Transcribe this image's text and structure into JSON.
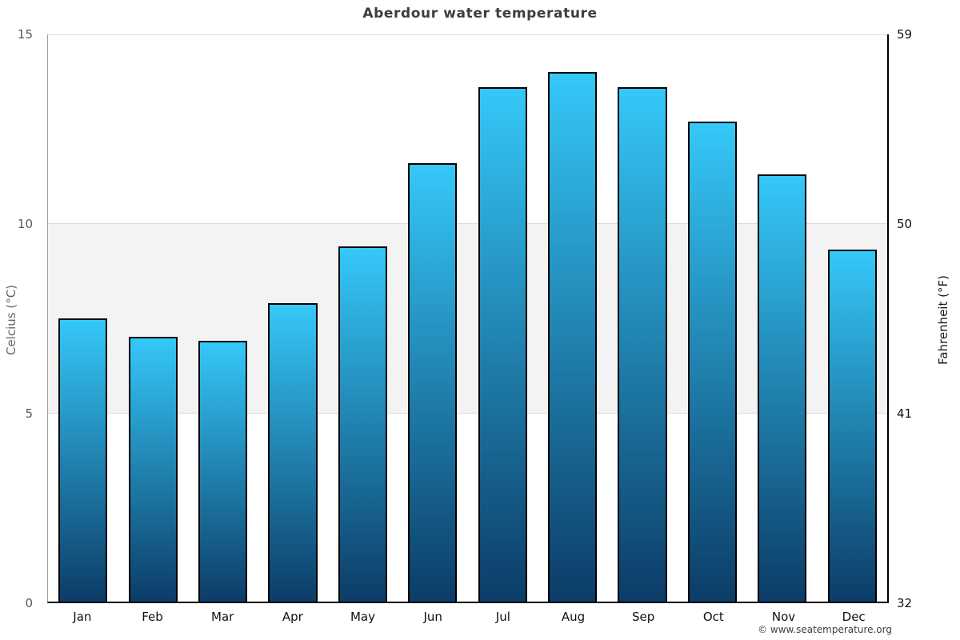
{
  "footer": {
    "copyright": "© www.seatemperature.org"
  },
  "chart_data": {
    "type": "bar",
    "title": "Aberdour water temperature",
    "categories": [
      "Jan",
      "Feb",
      "Mar",
      "Apr",
      "May",
      "Jun",
      "Jul",
      "Aug",
      "Sep",
      "Oct",
      "Nov",
      "Dec"
    ],
    "values": [
      7.5,
      7.0,
      6.9,
      7.9,
      9.4,
      11.6,
      13.6,
      14.0,
      13.6,
      12.7,
      11.3,
      9.3
    ],
    "xlabel": "",
    "ylabel_left": "Celcius (°C)",
    "ylabel_right": "Fahrenheit (°F)",
    "ylim": [
      0,
      15
    ],
    "yticks_left": [
      15,
      10,
      5,
      0
    ],
    "yticks_right": [
      59,
      50,
      41,
      32
    ],
    "gridlines": [
      15,
      10,
      5
    ],
    "band": {
      "from": 5,
      "to": 10
    },
    "grid_on": true,
    "legend": null,
    "colors": {
      "bar_gradient_top": "#35c8f8",
      "bar_gradient_bottom": "#0c3c67",
      "bar_border": "#000000",
      "band_fill": "#f3f3f3",
      "gridline": "#dcdcdc",
      "left_axis_line": "#a0a0a0",
      "right_axis_line": "#000000",
      "bottom_axis_line": "#000000",
      "title_text": "#3d3d3d",
      "left_tick_text": "#595959",
      "right_tick_text": "#111111",
      "month_text": "#111111",
      "copyright_text": "#3f3f3f"
    }
  }
}
